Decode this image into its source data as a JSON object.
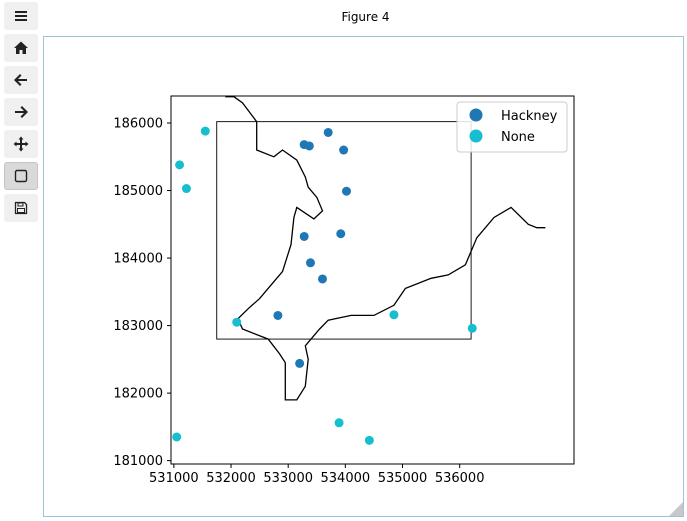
{
  "window": {
    "title": "Figure 4"
  },
  "toolbar": {
    "buttons": [
      {
        "name": "menu",
        "icon": "hamburger-icon"
      },
      {
        "name": "home",
        "icon": "home-icon"
      },
      {
        "name": "back",
        "icon": "arrow-left-icon"
      },
      {
        "name": "forward",
        "icon": "arrow-right-icon"
      },
      {
        "name": "pan",
        "icon": "move-icon"
      },
      {
        "name": "zoom",
        "icon": "square-icon",
        "active": true
      },
      {
        "name": "save",
        "icon": "save-icon"
      }
    ]
  },
  "chart_data": {
    "type": "scatter",
    "title": "",
    "xlabel": "",
    "ylabel": "",
    "xlim": [
      530950,
      538000
    ],
    "ylim": [
      180950,
      186400
    ],
    "xticks": [
      531000,
      532000,
      533000,
      534000,
      535000,
      536000
    ],
    "yticks": [
      181000,
      182000,
      183000,
      184000,
      185000,
      186000
    ],
    "xtick_labels": [
      "531000",
      "532000",
      "533000",
      "534000",
      "535000",
      "536000"
    ],
    "ytick_labels": [
      "181000",
      "182000",
      "183000",
      "184000",
      "185000",
      "186000"
    ],
    "grid": false,
    "legend_position": "top-right",
    "series": [
      {
        "name": "Hackney",
        "color": "#1f77b4",
        "x": [
          533700,
          533280,
          533370,
          533970,
          534020,
          533280,
          533920,
          533390,
          533600,
          532820,
          533200
        ],
        "y": [
          185860,
          185680,
          185660,
          185600,
          184990,
          184320,
          184360,
          183930,
          183690,
          183150,
          182440
        ]
      },
      {
        "name": "None",
        "color": "#17becf",
        "x": [
          531550,
          531100,
          531220,
          532100,
          534850,
          536220,
          531050,
          533890,
          534420
        ],
        "y": [
          185880,
          185380,
          185030,
          183050,
          183160,
          182960,
          181350,
          181560,
          181300
        ]
      }
    ],
    "extent_box": {
      "x": [
        531750,
        536200
      ],
      "y": [
        182800,
        186020
      ]
    },
    "boundary_polyline": [
      [
        531900,
        186390
      ],
      [
        532050,
        186390
      ],
      [
        532200,
        186300
      ],
      [
        532450,
        186020
      ],
      [
        532450,
        185600
      ],
      [
        532750,
        185500
      ],
      [
        532900,
        185600
      ],
      [
        533150,
        185450
      ],
      [
        533300,
        185200
      ],
      [
        533350,
        185050
      ],
      [
        533500,
        184900
      ],
      [
        533600,
        184700
      ],
      [
        533450,
        184580
      ],
      [
        533150,
        184750
      ],
      [
        533100,
        184600
      ],
      [
        533050,
        184200
      ],
      [
        532900,
        183800
      ],
      [
        532700,
        183600
      ],
      [
        532500,
        183400
      ],
      [
        532300,
        183250
      ],
      [
        532120,
        183100
      ],
      [
        532200,
        182950
      ],
      [
        532650,
        182800
      ],
      [
        532850,
        182580
      ],
      [
        532950,
        182450
      ],
      [
        532950,
        182200
      ],
      [
        532950,
        181900
      ],
      [
        533150,
        181900
      ],
      [
        533300,
        182100
      ],
      [
        533350,
        182500
      ],
      [
        533300,
        182700
      ],
      [
        533550,
        182950
      ],
      [
        533700,
        183080
      ],
      [
        534100,
        183150
      ],
      [
        534500,
        183150
      ],
      [
        534850,
        183300
      ],
      [
        535050,
        183550
      ],
      [
        535500,
        183700
      ],
      [
        535800,
        183750
      ],
      [
        536100,
        183900
      ],
      [
        536300,
        184300
      ],
      [
        536600,
        184600
      ],
      [
        536900,
        184750
      ],
      [
        537200,
        184500
      ],
      [
        537350,
        184450
      ],
      [
        537500,
        184450
      ]
    ]
  }
}
